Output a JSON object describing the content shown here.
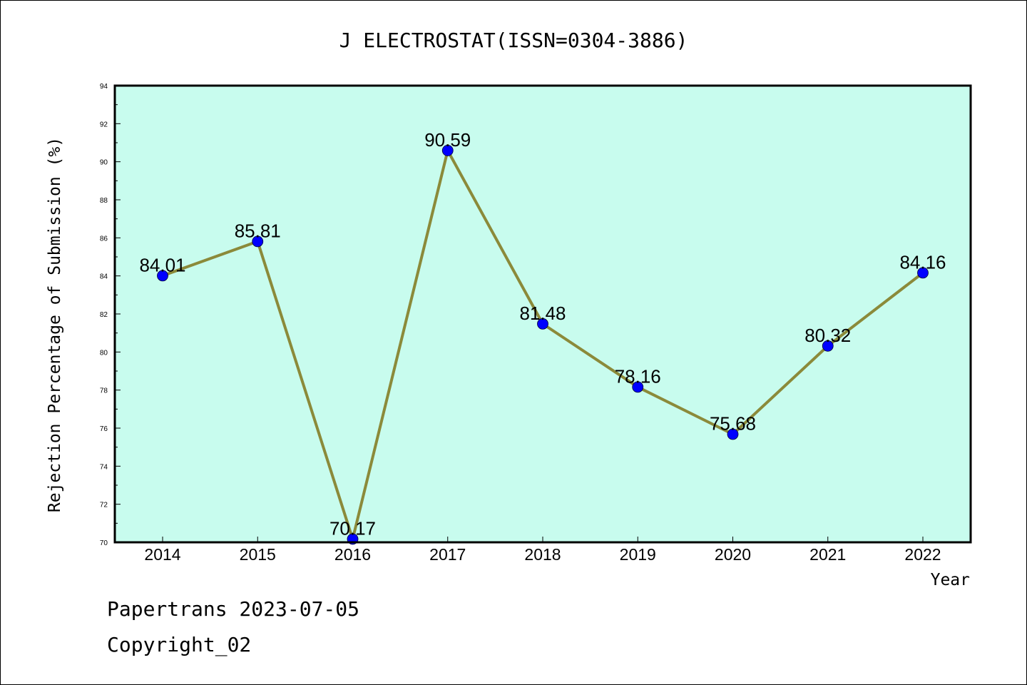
{
  "chart_data": {
    "type": "line",
    "title": "J ELECTROSTAT(ISSN=0304-3886)",
    "xlabel": "Year",
    "ylabel": "Rejection Percentage of Submission (%)",
    "categories": [
      "2014",
      "2015",
      "2016",
      "2017",
      "2018",
      "2019",
      "2020",
      "2021",
      "2022"
    ],
    "series": [
      {
        "values": [
          84.01,
          85.81,
          70.17,
          90.59,
          81.48,
          78.16,
          75.68,
          80.32,
          84.16
        ],
        "data_labels": [
          "84.01",
          "85.81",
          "70.17",
          "90.59",
          "81.48",
          "78.16",
          "75.68",
          "80.32",
          "84.16"
        ]
      }
    ],
    "ylim": [
      70,
      94
    ],
    "yticks": [
      "70",
      "72",
      "74",
      "76",
      "78",
      "80",
      "82",
      "84",
      "86",
      "88",
      "90",
      "92",
      "94"
    ],
    "grid": false,
    "colors": {
      "plot_background": "#c8fcee",
      "line": "#8b8a3a",
      "marker": "#0000ff",
      "frame": "#000000"
    }
  },
  "footer": {
    "line1": "Papertrans 2023-07-05",
    "line2": "Copyright_02"
  }
}
